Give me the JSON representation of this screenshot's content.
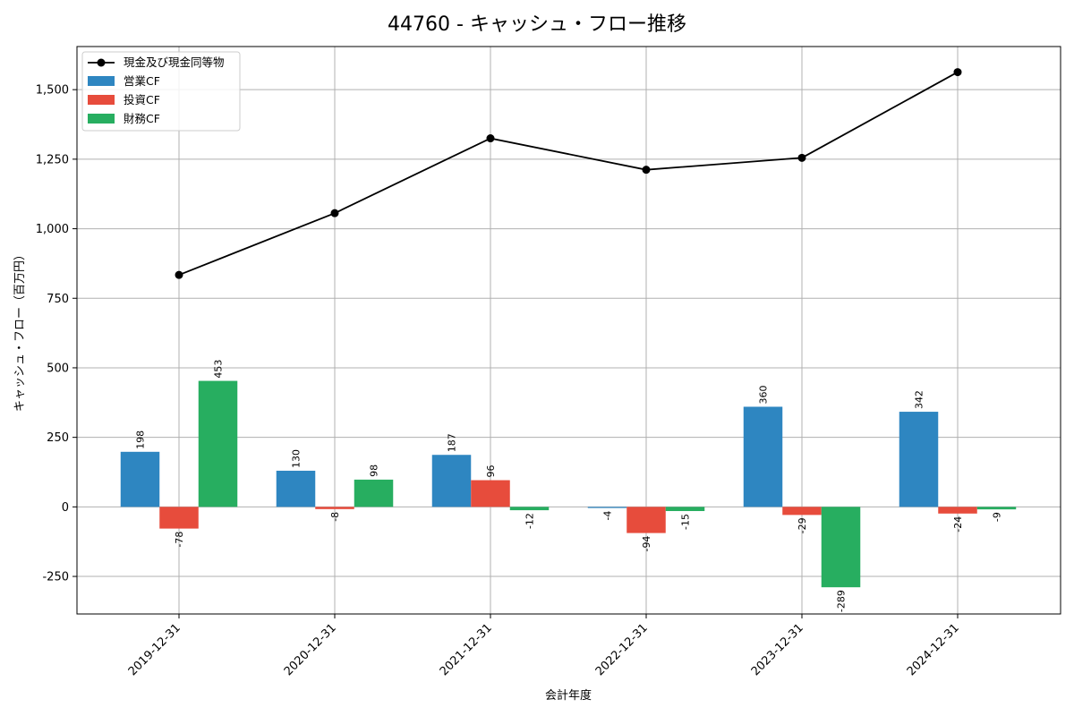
{
  "chart_data": {
    "type": "bar",
    "title": "44760 - キャッシュ・フロー推移",
    "xlabel": "会計年度",
    "ylabel": "キャッシュ・フロー（百万円）",
    "categories": [
      "2019-12-31",
      "2020-12-31",
      "2021-12-31",
      "2022-12-31",
      "2023-12-31",
      "2024-12-31"
    ],
    "ylim": [
      -385,
      1655
    ],
    "yticks": [
      -250,
      0,
      250,
      500,
      750,
      1000,
      1250,
      1500
    ],
    "ytick_labels": [
      "-250",
      "0",
      "250",
      "500",
      "750",
      "1,000",
      "1,250",
      "1,500"
    ],
    "grid": true,
    "legend_position": "top-left",
    "series": [
      {
        "name": "営業CF",
        "kind": "bar",
        "color": "#2e86c1",
        "values": [
          198,
          130,
          187,
          -4,
          360,
          342
        ],
        "labels": [
          "198",
          "130",
          "187",
          "-4",
          "360",
          "342"
        ]
      },
      {
        "name": "投資CF",
        "kind": "bar",
        "color": "#e74c3c",
        "values": [
          -78,
          -8,
          96,
          -94,
          -29,
          -24
        ],
        "labels": [
          "-78",
          "-8",
          "96",
          "-94",
          "-29",
          "-24"
        ]
      },
      {
        "name": "財務CF",
        "kind": "bar",
        "color": "#27ae60",
        "values": [
          453,
          98,
          -12,
          -15,
          -289,
          -9
        ],
        "labels": [
          "453",
          "98",
          "-12",
          "-15",
          "-289",
          "-9"
        ]
      }
    ],
    "line": {
      "name": "現金及び現金同等物",
      "color": "#000000",
      "values": [
        834,
        1056,
        1325,
        1212,
        1255,
        1563
      ]
    }
  }
}
